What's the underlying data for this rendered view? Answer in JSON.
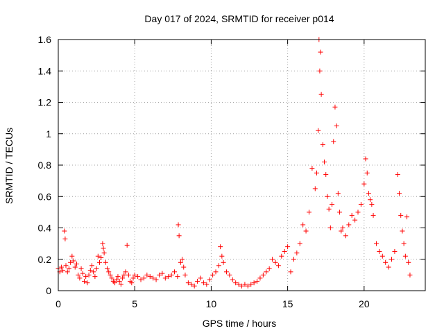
{
  "chart_data": {
    "type": "scatter",
    "title": "Day 017 of 2024, SRMTID for receiver p014",
    "xlabel": "GPS time / hours",
    "ylabel": "SRMTID / TECUs",
    "xlim": [
      0,
      24
    ],
    "ylim": [
      0,
      1.6
    ],
    "x_ticks": [
      0,
      5,
      10,
      15,
      20
    ],
    "x_tick_labels": [
      "0",
      "5",
      "10",
      "15",
      "20"
    ],
    "y_ticks": [
      0,
      0.2,
      0.4,
      0.6,
      0.8,
      1.0,
      1.2,
      1.4,
      1.6
    ],
    "y_tick_labels": [
      "0",
      "0.2",
      "0.4",
      "0.6",
      "0.8",
      "1",
      "1.2",
      "1.4",
      "1.6"
    ],
    "grid": true,
    "marker": "+",
    "series": [
      {
        "name": "SRMTID",
        "color": "#ff0000",
        "x": [
          0.0,
          0.1,
          0.2,
          0.3,
          0.4,
          0.45,
          0.5,
          0.6,
          0.7,
          0.8,
          0.9,
          1.0,
          1.1,
          1.2,
          1.3,
          1.4,
          1.5,
          1.6,
          1.7,
          1.8,
          1.9,
          2.0,
          2.1,
          2.2,
          2.3,
          2.4,
          2.5,
          2.6,
          2.7,
          2.8,
          2.9,
          2.95,
          3.0,
          3.1,
          3.2,
          3.3,
          3.4,
          3.5,
          3.6,
          3.7,
          3.8,
          3.9,
          4.0,
          4.1,
          4.2,
          4.3,
          4.4,
          4.5,
          4.6,
          4.7,
          4.8,
          4.9,
          5.0,
          5.2,
          5.4,
          5.6,
          5.8,
          6.0,
          6.2,
          6.4,
          6.6,
          6.8,
          7.0,
          7.2,
          7.4,
          7.6,
          7.8,
          7.85,
          7.9,
          8.0,
          8.1,
          8.2,
          8.3,
          8.5,
          8.7,
          8.9,
          9.1,
          9.3,
          9.5,
          9.7,
          9.9,
          10.1,
          10.3,
          10.5,
          10.6,
          10.7,
          10.8,
          11.0,
          11.2,
          11.4,
          11.6,
          11.8,
          12.0,
          12.2,
          12.4,
          12.6,
          12.8,
          13.0,
          13.2,
          13.4,
          13.6,
          13.8,
          14.0,
          14.2,
          14.4,
          14.6,
          14.8,
          15.0,
          15.2,
          15.4,
          15.6,
          15.8,
          16.0,
          16.2,
          16.4,
          16.6,
          16.8,
          16.9,
          17.0,
          17.05,
          17.1,
          17.15,
          17.2,
          17.3,
          17.4,
          17.5,
          17.6,
          17.7,
          17.8,
          17.9,
          18.0,
          18.1,
          18.2,
          18.3,
          18.4,
          18.5,
          18.6,
          18.8,
          19.0,
          19.2,
          19.4,
          19.6,
          19.8,
          20.0,
          20.1,
          20.2,
          20.3,
          20.4,
          20.5,
          20.6,
          20.8,
          21.0,
          21.2,
          21.4,
          21.6,
          21.8,
          22.0,
          22.2,
          22.3,
          22.4,
          22.5,
          22.6,
          22.7,
          22.8,
          22.9,
          23.0
        ],
        "y": [
          0.14,
          0.12,
          0.15,
          0.13,
          0.38,
          0.33,
          0.16,
          0.12,
          0.14,
          0.18,
          0.22,
          0.19,
          0.15,
          0.17,
          0.1,
          0.08,
          0.14,
          0.11,
          0.06,
          0.09,
          0.05,
          0.1,
          0.13,
          0.16,
          0.12,
          0.09,
          0.14,
          0.22,
          0.18,
          0.21,
          0.3,
          0.27,
          0.24,
          0.18,
          0.14,
          0.12,
          0.1,
          0.08,
          0.06,
          0.05,
          0.07,
          0.09,
          0.06,
          0.04,
          0.08,
          0.1,
          0.12,
          0.29,
          0.1,
          0.06,
          0.05,
          0.08,
          0.1,
          0.09,
          0.07,
          0.08,
          0.1,
          0.09,
          0.08,
          0.07,
          0.1,
          0.11,
          0.08,
          0.09,
          0.1,
          0.12,
          0.09,
          0.42,
          0.35,
          0.18,
          0.2,
          0.15,
          0.1,
          0.05,
          0.04,
          0.03,
          0.06,
          0.08,
          0.05,
          0.04,
          0.07,
          0.1,
          0.12,
          0.16,
          0.28,
          0.22,
          0.18,
          0.12,
          0.1,
          0.07,
          0.05,
          0.04,
          0.03,
          0.04,
          0.03,
          0.04,
          0.05,
          0.06,
          0.08,
          0.1,
          0.12,
          0.14,
          0.2,
          0.18,
          0.16,
          0.22,
          0.25,
          0.28,
          0.12,
          0.2,
          0.24,
          0.3,
          0.42,
          0.38,
          0.5,
          0.78,
          0.65,
          0.75,
          1.02,
          1.6,
          1.4,
          1.52,
          1.25,
          0.93,
          0.82,
          0.74,
          0.6,
          0.52,
          0.4,
          0.55,
          0.95,
          1.17,
          1.05,
          0.62,
          0.5,
          0.38,
          0.4,
          0.35,
          0.42,
          0.48,
          0.45,
          0.5,
          0.55,
          0.68,
          0.84,
          0.75,
          0.62,
          0.58,
          0.55,
          0.48,
          0.3,
          0.25,
          0.22,
          0.18,
          0.15,
          0.2,
          0.25,
          0.74,
          0.62,
          0.48,
          0.38,
          0.3,
          0.22,
          0.47,
          0.18,
          0.1
        ]
      }
    ]
  }
}
